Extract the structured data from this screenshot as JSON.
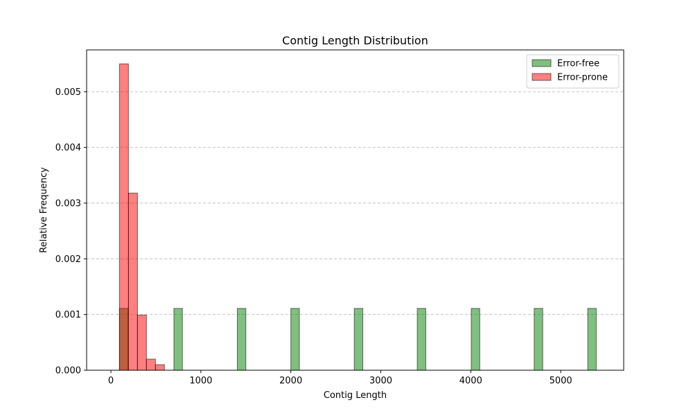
{
  "chart_data": {
    "type": "bar",
    "title": "Contig Length Distribution",
    "xlabel": "Contig Length",
    "ylabel": "Relative Frequency",
    "xlim": [
      -270,
      5700
    ],
    "ylim": [
      0,
      0.00575
    ],
    "xticks": [
      0,
      1000,
      2000,
      3000,
      4000,
      5000
    ],
    "xtick_labels": [
      "0",
      "1000",
      "2000",
      "3000",
      "4000",
      "5000"
    ],
    "yticks": [
      0.0,
      0.001,
      0.002,
      0.003,
      0.004,
      0.005
    ],
    "ytick_labels": [
      "0.000",
      "0.001",
      "0.002",
      "0.003",
      "0.004",
      "0.005"
    ],
    "grid": "y-dashed",
    "legend_position": "top-right",
    "series": [
      {
        "name": "Error-free",
        "color": "#008000",
        "bins": [
          {
            "x0": 95,
            "x1": 190,
            "value": 0.00111
          },
          {
            "x0": 700,
            "x1": 795,
            "value": 0.00111
          },
          {
            "x0": 1405,
            "x1": 1500,
            "value": 0.00111
          },
          {
            "x0": 2000,
            "x1": 2095,
            "value": 0.00111
          },
          {
            "x0": 2705,
            "x1": 2800,
            "value": 0.00111
          },
          {
            "x0": 3405,
            "x1": 3500,
            "value": 0.00111
          },
          {
            "x0": 4005,
            "x1": 4100,
            "value": 0.00111
          },
          {
            "x0": 4705,
            "x1": 4800,
            "value": 0.00111
          },
          {
            "x0": 5300,
            "x1": 5395,
            "value": 0.00111
          }
        ]
      },
      {
        "name": "Error-prone",
        "color": "#ff0000",
        "bins": [
          {
            "x0": 95,
            "x1": 195,
            "value": 0.0055
          },
          {
            "x0": 195,
            "x1": 295,
            "value": 0.00318
          },
          {
            "x0": 295,
            "x1": 395,
            "value": 0.00099
          },
          {
            "x0": 395,
            "x1": 495,
            "value": 0.0002
          },
          {
            "x0": 495,
            "x1": 595,
            "value": 0.0001
          }
        ]
      }
    ]
  }
}
